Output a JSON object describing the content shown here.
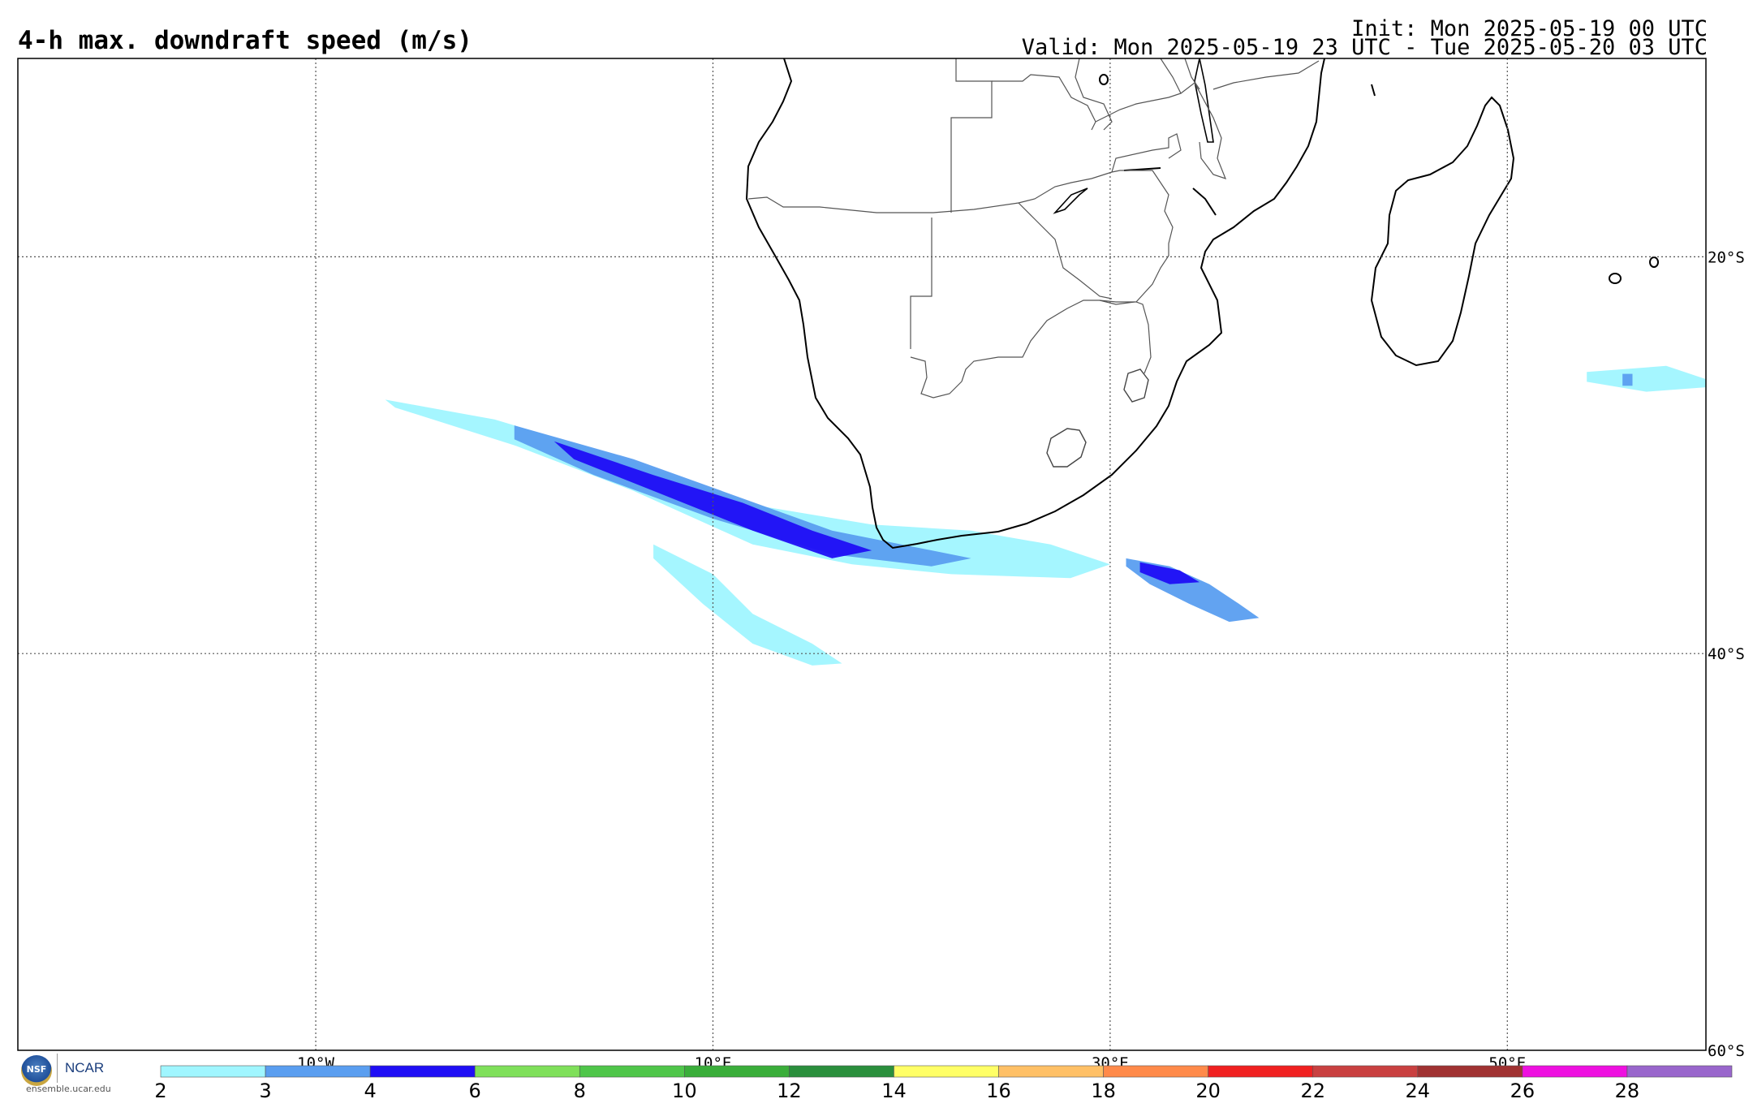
{
  "header": {
    "title": "4-h max. downdraft speed (m/s)",
    "init": "Init: Mon 2025-05-19 00 UTC",
    "valid": "Valid: Mon 2025-05-19 23 UTC - Tue 2025-05-20 03 UTC"
  },
  "map": {
    "lon_range": [
      -25,
      60
    ],
    "lat_range": [
      -60,
      -10
    ],
    "lon_labels": [
      {
        "lon": -10,
        "text": "10°W"
      },
      {
        "lon": 10,
        "text": "10°E"
      },
      {
        "lon": 30,
        "text": "30°E"
      },
      {
        "lon": 50,
        "text": "50°E"
      }
    ],
    "lat_labels": [
      {
        "lat": -20,
        "text": "20°S"
      },
      {
        "lat": -40,
        "text": "40°S"
      },
      {
        "lat": -60,
        "text": "60°S"
      }
    ]
  },
  "colorbar": {
    "ticks": [
      "2",
      "3",
      "4",
      "6",
      "8",
      "10",
      "12",
      "14",
      "16",
      "18",
      "20",
      "22",
      "24",
      "26",
      "28"
    ],
    "colors": [
      "#a0f6ff",
      "#5a9ef0",
      "#1f0ef5",
      "#7fe05a",
      "#4fc64a",
      "#3aae3a",
      "#2a8f3c",
      "#ffff66",
      "#ffc066",
      "#ff8a4a",
      "#f02020",
      "#c94040",
      "#a03232",
      "#ee10e0",
      "#9966cc"
    ]
  },
  "legend": {
    "credit": "ensemble.ucar.edu",
    "nsf": "NSF",
    "ncar": "NCAR"
  },
  "features": {
    "land_color": "#ffffff",
    "coast_color": "#000000",
    "border_color": "#555555",
    "downdraft_swaths": [
      {
        "level": 0,
        "pts": [
          [
            -6.5,
            -27.2
          ],
          [
            -1,
            -28.2
          ],
          [
            5,
            -30
          ],
          [
            12,
            -32.5
          ],
          [
            18,
            -33.5
          ],
          [
            23,
            -33.8
          ],
          [
            27,
            -34.5
          ],
          [
            30,
            -35.5
          ],
          [
            28,
            -36.2
          ],
          [
            22,
            -36
          ],
          [
            17,
            -35.5
          ],
          [
            12,
            -34.5
          ],
          [
            6,
            -31.8
          ],
          [
            0,
            -29.5
          ],
          [
            -6,
            -27.6
          ]
        ]
      },
      {
        "level": 1,
        "pts": [
          [
            0,
            -28.5
          ],
          [
            6,
            -30.2
          ],
          [
            11,
            -32
          ],
          [
            16,
            -33.8
          ],
          [
            20,
            -34.6
          ],
          [
            23,
            -35.2
          ],
          [
            21,
            -35.6
          ],
          [
            16,
            -35
          ],
          [
            10,
            -33.2
          ],
          [
            4,
            -31
          ],
          [
            0,
            -29.2
          ]
        ]
      },
      {
        "level": 2,
        "pts": [
          [
            2,
            -29.3
          ],
          [
            7,
            -31
          ],
          [
            11.5,
            -32.4
          ],
          [
            15,
            -33.8
          ],
          [
            18,
            -34.8
          ],
          [
            16,
            -35.2
          ],
          [
            12,
            -33.8
          ],
          [
            7,
            -31.8
          ],
          [
            3,
            -30.2
          ]
        ]
      },
      {
        "level": 0,
        "pts": [
          [
            7,
            -34.5
          ],
          [
            10,
            -36
          ],
          [
            12,
            -38
          ],
          [
            15,
            -39.5
          ],
          [
            16.5,
            -40.5
          ],
          [
            15,
            -40.6
          ],
          [
            12,
            -39.5
          ],
          [
            9.5,
            -37.5
          ],
          [
            7,
            -35.2
          ]
        ]
      },
      {
        "level": 1,
        "pts": [
          [
            30.8,
            -35.2
          ],
          [
            33,
            -35.6
          ],
          [
            35,
            -36.5
          ],
          [
            36.5,
            -37.5
          ],
          [
            37.5,
            -38.2
          ],
          [
            36,
            -38.4
          ],
          [
            34,
            -37.5
          ],
          [
            32,
            -36.5
          ],
          [
            30.8,
            -35.6
          ]
        ]
      },
      {
        "level": 2,
        "pts": [
          [
            31.5,
            -35.4
          ],
          [
            33.5,
            -35.8
          ],
          [
            34.5,
            -36.4
          ],
          [
            33,
            -36.5
          ],
          [
            31.5,
            -35.9
          ]
        ]
      },
      {
        "level": 0,
        "pts": [
          [
            54,
            -25.8
          ],
          [
            58,
            -25.5
          ],
          [
            61,
            -26.5
          ],
          [
            57,
            -26.8
          ],
          [
            54,
            -26.3
          ]
        ]
      },
      {
        "level": 1,
        "pts": [
          [
            55.8,
            -25.9
          ],
          [
            56.3,
            -25.9
          ],
          [
            56.3,
            -26.5
          ],
          [
            55.8,
            -26.5
          ]
        ]
      }
    ]
  }
}
